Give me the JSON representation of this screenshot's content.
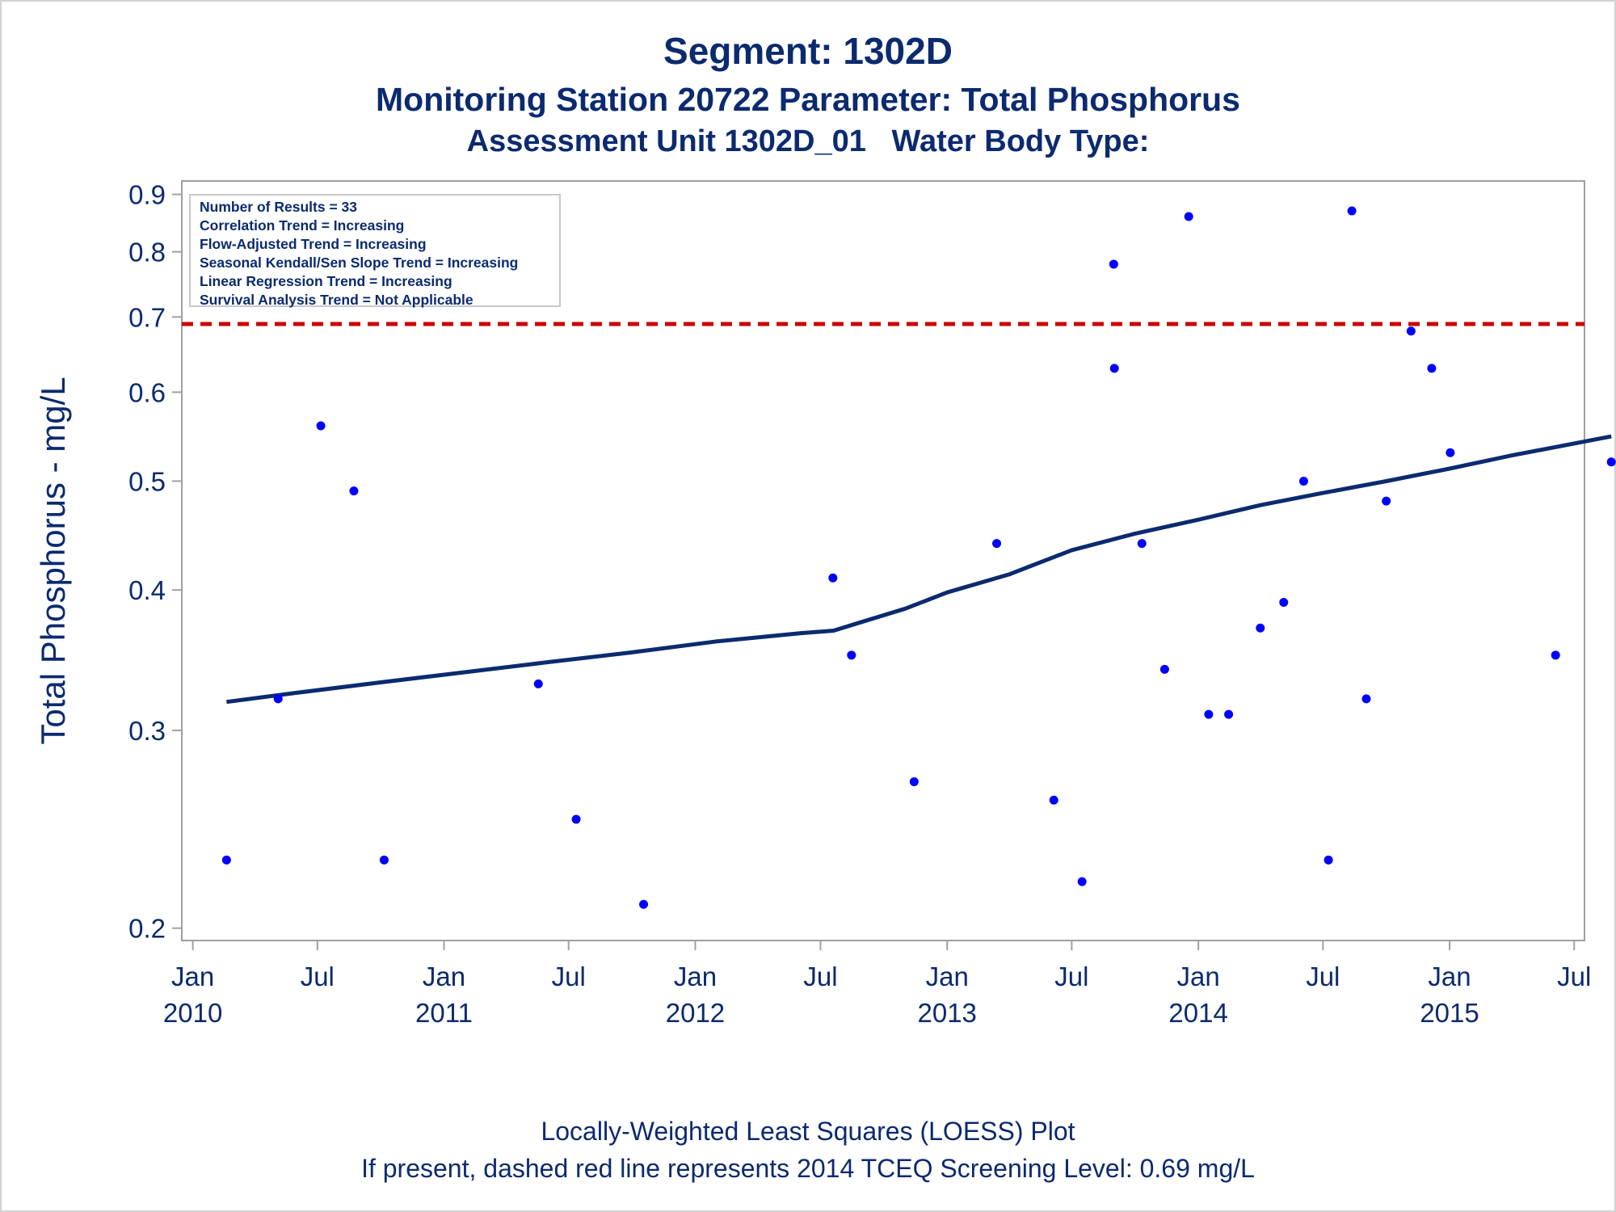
{
  "title": "Segment: 1302D",
  "subtitle1": "Monitoring Station 20722 Parameter: Total Phosphorus",
  "subtitle2": "Assessment Unit 1302D_01   Water Body Type:",
  "stats": [
    "Number of Results = 33",
    "Correlation Trend = Increasing",
    "Flow-Adjusted Trend = Increasing",
    "Seasonal Kendall/Sen Slope Trend = Increasing",
    "Linear Regression Trend = Increasing",
    "Survival Analysis Trend = Not Applicable"
  ],
  "footnote1": "Locally-Weighted Least Squares (LOESS) Plot",
  "footnote2": "If present, dashed red line represents 2014 TCEQ Screening Level: 0.69 mg/L",
  "colors": {
    "text": "#0b2a6f",
    "points": "#0000ff",
    "loess": "#0b2a6f",
    "screening_line": "#cc0000",
    "frame": "#a0a0a0"
  },
  "chart_data": {
    "type": "scatter",
    "ylabel": "Total Phosphorus - mg/L",
    "y_scale": "log",
    "ylim": [
      0.195,
      0.925
    ],
    "xlim": [
      "2009-12-16",
      "2015-07-16"
    ],
    "yticks": [
      {
        "value": 0.2,
        "label": "0.2"
      },
      {
        "value": 0.3,
        "label": "0.3"
      },
      {
        "value": 0.4,
        "label": "0.4"
      },
      {
        "value": 0.5,
        "label": "0.5"
      },
      {
        "value": 0.6,
        "label": "0.6"
      },
      {
        "value": 0.7,
        "label": "0.7"
      },
      {
        "value": 0.8,
        "label": "0.8"
      },
      {
        "value": 0.9,
        "label": "0.9"
      }
    ],
    "xticks": [
      {
        "date": "2010-01-01",
        "label1": "Jan",
        "label2": "2010"
      },
      {
        "date": "2010-07-01",
        "label1": "Jul",
        "label2": ""
      },
      {
        "date": "2011-01-01",
        "label1": "Jan",
        "label2": "2011"
      },
      {
        "date": "2011-07-01",
        "label1": "Jul",
        "label2": ""
      },
      {
        "date": "2012-01-01",
        "label1": "Jan",
        "label2": "2012"
      },
      {
        "date": "2012-07-01",
        "label1": "Jul",
        "label2": ""
      },
      {
        "date": "2013-01-01",
        "label1": "Jan",
        "label2": "2013"
      },
      {
        "date": "2013-07-01",
        "label1": "Jul",
        "label2": ""
      },
      {
        "date": "2014-01-01",
        "label1": "Jan",
        "label2": "2014"
      },
      {
        "date": "2014-07-01",
        "label1": "Jul",
        "label2": ""
      },
      {
        "date": "2015-01-01",
        "label1": "Jan",
        "label2": "2015"
      },
      {
        "date": "2015-07-01",
        "label1": "Jul",
        "label2": ""
      }
    ],
    "reference_line": {
      "value": 0.69,
      "style": "dashed"
    },
    "series": [
      {
        "type": "scatter",
        "points": [
          {
            "x": "2010-02-19",
            "y": 0.23
          },
          {
            "x": "2010-05-05",
            "y": 0.32
          },
          {
            "x": "2010-07-06",
            "y": 0.56
          },
          {
            "x": "2010-08-23",
            "y": 0.49
          },
          {
            "x": "2010-10-06",
            "y": 0.23
          },
          {
            "x": "2011-05-18",
            "y": 0.33
          },
          {
            "x": "2011-07-12",
            "y": 0.25
          },
          {
            "x": "2011-10-18",
            "y": 0.21
          },
          {
            "x": "2012-07-19",
            "y": 0.41
          },
          {
            "x": "2012-08-15",
            "y": 0.35
          },
          {
            "x": "2012-11-14",
            "y": 0.27
          },
          {
            "x": "2013-03-14",
            "y": 0.44
          },
          {
            "x": "2013-06-05",
            "y": 0.26
          },
          {
            "x": "2013-07-16",
            "y": 0.22
          },
          {
            "x": "2013-08-31",
            "y": 0.78
          },
          {
            "x": "2013-09-01",
            "y": 0.63
          },
          {
            "x": "2013-10-11",
            "y": 0.44
          },
          {
            "x": "2013-11-13",
            "y": 0.34
          },
          {
            "x": "2013-12-18",
            "y": 0.86
          },
          {
            "x": "2014-01-16",
            "y": 0.31
          },
          {
            "x": "2014-02-14",
            "y": 0.31
          },
          {
            "x": "2014-04-01",
            "y": 0.37
          },
          {
            "x": "2014-05-05",
            "y": 0.39
          },
          {
            "x": "2014-06-03",
            "y": 0.5
          },
          {
            "x": "2014-07-09",
            "y": 0.23
          },
          {
            "x": "2014-08-12",
            "y": 0.87
          },
          {
            "x": "2014-09-02",
            "y": 0.32
          },
          {
            "x": "2014-10-01",
            "y": 0.48
          },
          {
            "x": "2014-11-06",
            "y": 0.68
          },
          {
            "x": "2014-12-06",
            "y": 0.63
          },
          {
            "x": "2015-01-02",
            "y": 0.53
          },
          {
            "x": "2015-06-04",
            "y": 0.35
          },
          {
            "x": "2015-08-24",
            "y": 0.52
          }
        ]
      },
      {
        "type": "line",
        "points": [
          {
            "x": "2010-02-19",
            "y": 0.318
          },
          {
            "x": "2010-06-01",
            "y": 0.324
          },
          {
            "x": "2010-10-01",
            "y": 0.331
          },
          {
            "x": "2011-02-01",
            "y": 0.338
          },
          {
            "x": "2011-06-01",
            "y": 0.345
          },
          {
            "x": "2011-10-01",
            "y": 0.352
          },
          {
            "x": "2012-02-01",
            "y": 0.36
          },
          {
            "x": "2012-06-01",
            "y": 0.366
          },
          {
            "x": "2012-07-20",
            "y": 0.368
          },
          {
            "x": "2012-09-01",
            "y": 0.375
          },
          {
            "x": "2012-11-01",
            "y": 0.385
          },
          {
            "x": "2013-01-01",
            "y": 0.398
          },
          {
            "x": "2013-04-01",
            "y": 0.413
          },
          {
            "x": "2013-07-01",
            "y": 0.434
          },
          {
            "x": "2013-10-01",
            "y": 0.449
          },
          {
            "x": "2014-01-01",
            "y": 0.462
          },
          {
            "x": "2014-04-01",
            "y": 0.476
          },
          {
            "x": "2014-07-01",
            "y": 0.488
          },
          {
            "x": "2014-10-01",
            "y": 0.5
          },
          {
            "x": "2015-01-01",
            "y": 0.513
          },
          {
            "x": "2015-04-01",
            "y": 0.527
          },
          {
            "x": "2015-08-24",
            "y": 0.548
          }
        ]
      }
    ]
  }
}
